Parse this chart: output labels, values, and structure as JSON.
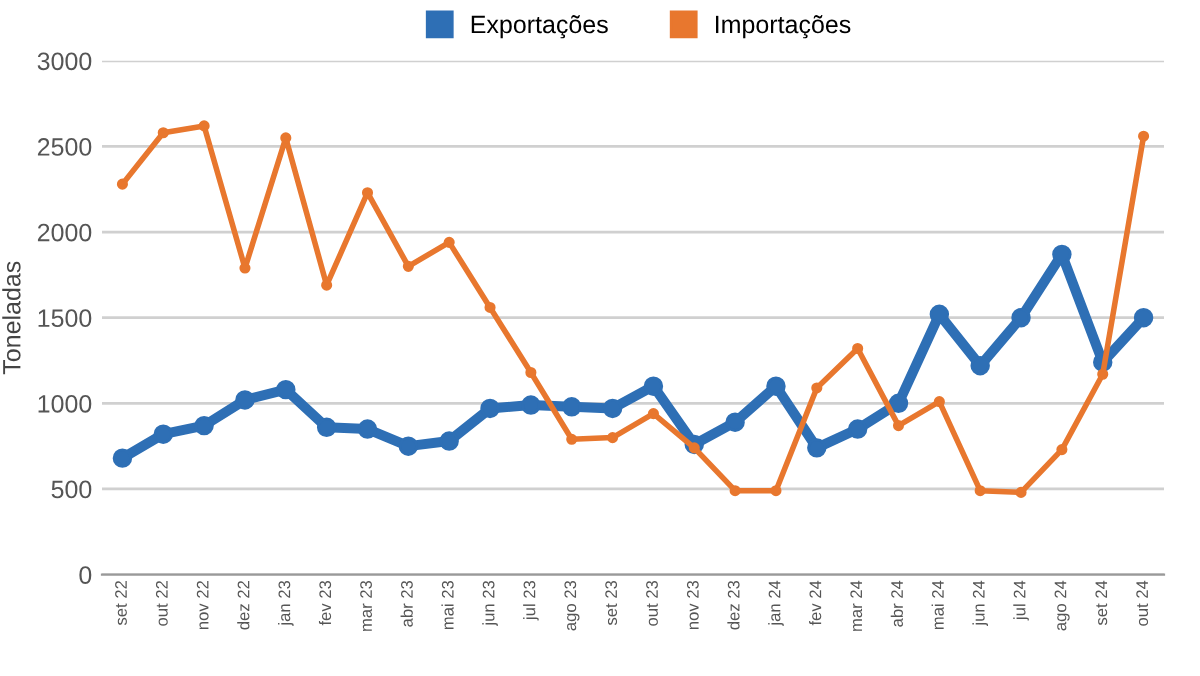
{
  "chart_data": {
    "type": "line",
    "categories": [
      "set 22",
      "out 22",
      "nov 22",
      "dez 22",
      "jan 23",
      "fev 23",
      "mar 23",
      "abr 23",
      "mai 23",
      "jun 23",
      "jul 23",
      "ago 23",
      "set 23",
      "out 23",
      "nov 23",
      "dez 23",
      "jan 24",
      "fev 24",
      "mar 24",
      "abr 24",
      "mai 24",
      "jun 24",
      "jul 24",
      "ago 24",
      "set 24",
      "out 24"
    ],
    "series": [
      {
        "name": "Exportações",
        "color": "#2e6fb5",
        "values": [
          680,
          820,
          870,
          1020,
          1080,
          860,
          850,
          750,
          780,
          970,
          990,
          980,
          970,
          1100,
          760,
          890,
          1100,
          740,
          850,
          1000,
          1520,
          1220,
          1500,
          1870,
          1240,
          1500
        ]
      },
      {
        "name": "Importações",
        "color": "#e8772e",
        "values": [
          2280,
          2580,
          2620,
          1790,
          2550,
          1690,
          2230,
          1800,
          1940,
          1560,
          1180,
          790,
          800,
          940,
          740,
          490,
          490,
          1090,
          1320,
          870,
          1010,
          490,
          480,
          730,
          1170,
          2560
        ]
      }
    ],
    "ylabel": "Toneladas",
    "ylim": [
      0,
      3000
    ],
    "yticks": [
      0,
      500,
      1000,
      1500,
      2000,
      2500,
      3000
    ],
    "grid": "y",
    "legend": "top",
    "marker": "circle",
    "line_style": "solid"
  }
}
